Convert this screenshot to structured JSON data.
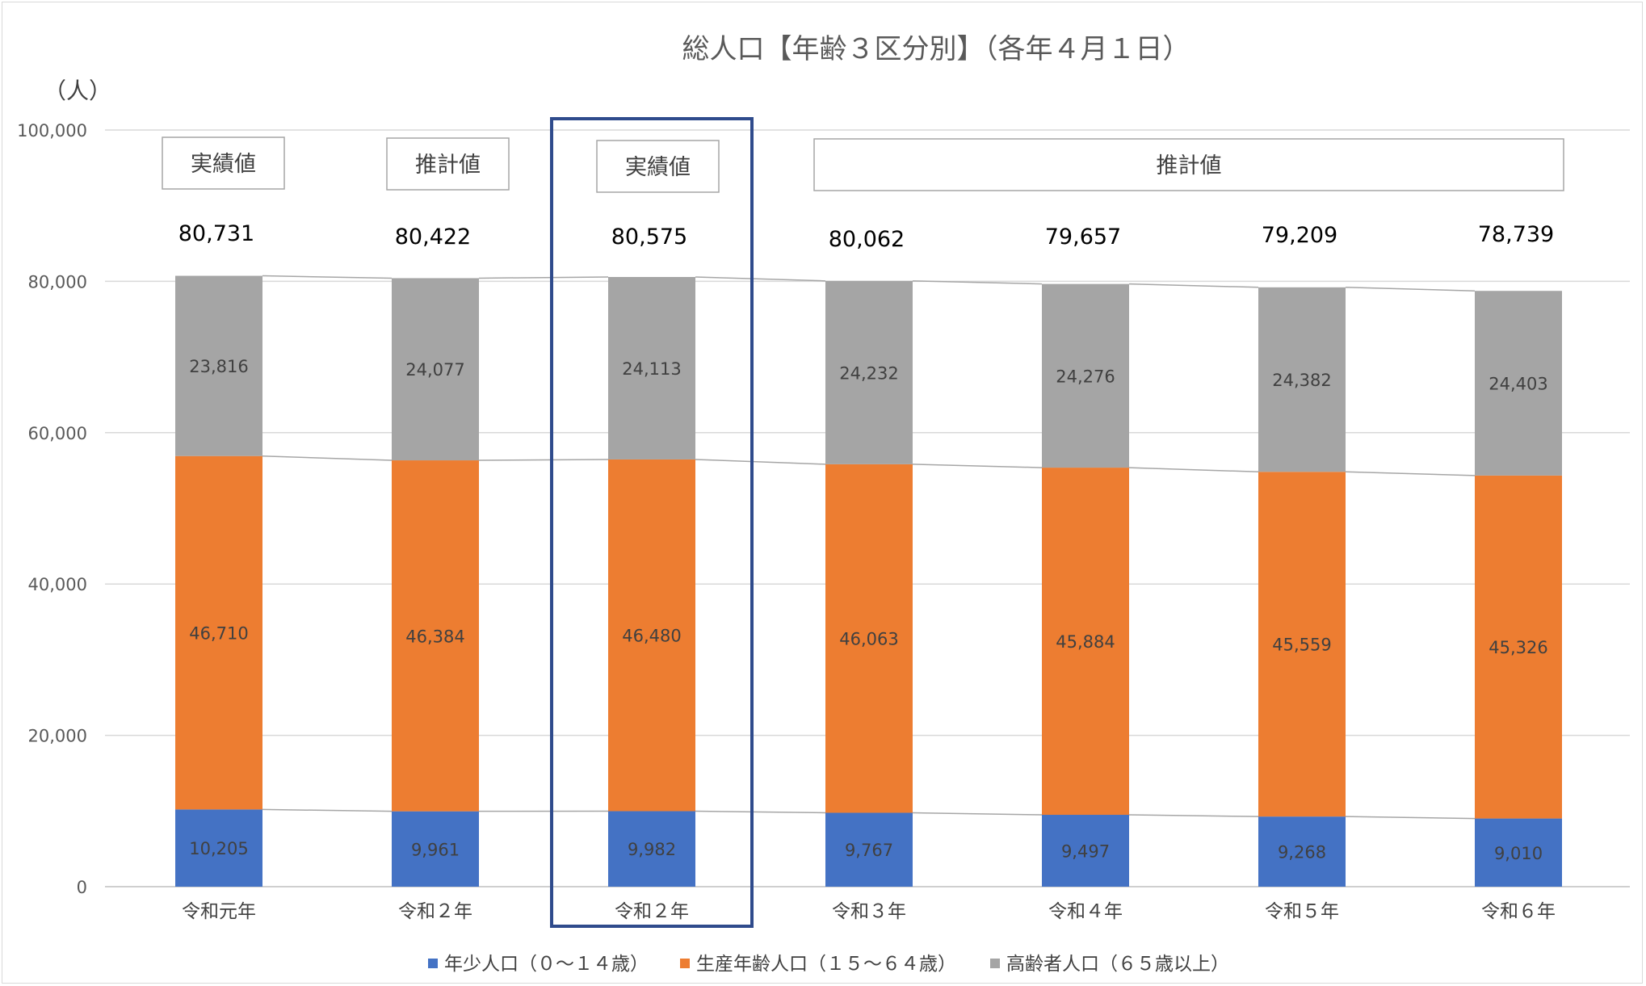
{
  "chart_data": {
    "type": "bar",
    "stacked": true,
    "title": "総人口【年齢３区分別】（各年４月１日）",
    "unit_label": "（人）",
    "categories": [
      "令和元年",
      "令和２年",
      "令和２年",
      "令和３年",
      "令和４年",
      "令和５年",
      "令和６年"
    ],
    "series": [
      {
        "name": "年少人口（０～１４歳）",
        "color": "#4472c4",
        "values": [
          10205,
          9961,
          9982,
          9767,
          9497,
          9268,
          9010
        ],
        "labels": [
          "10,205",
          "9,961",
          "9,982",
          "9,767",
          "9,497",
          "9,268",
          "9,010"
        ]
      },
      {
        "name": "生産年齢人口（１５～６４歳）",
        "color": "#ed7d31",
        "values": [
          46710,
          46384,
          46480,
          46063,
          45884,
          45559,
          45326
        ],
        "labels": [
          "46,710",
          "46,384",
          "46,480",
          "46,063",
          "45,884",
          "45,559",
          "45,326"
        ]
      },
      {
        "name": "高齢者人口（６５歳以上）",
        "color": "#a5a5a5",
        "values": [
          23816,
          24077,
          24113,
          24232,
          24276,
          24382,
          24403
        ],
        "labels": [
          "23,816",
          "24,077",
          "24,113",
          "24,232",
          "24,276",
          "24,382",
          "24,403"
        ]
      }
    ],
    "totals": [
      80731,
      80422,
      80575,
      80062,
      79657,
      79209,
      78739
    ],
    "total_labels": [
      "80,731",
      "80,422",
      "80,575",
      "80,062",
      "79,657",
      "79,209",
      "78,739"
    ],
    "ylim": [
      0,
      100000
    ],
    "yticks": [
      0,
      20000,
      40000,
      60000,
      80000,
      100000
    ],
    "ytick_labels": [
      "0",
      "20,000",
      "40,000",
      "60,000",
      "80,000",
      "100,000"
    ],
    "grid": true,
    "series_lines": true,
    "legend_position": "bottom",
    "annotations": [
      {
        "text": "実績値",
        "category_start": 0,
        "category_end": 0
      },
      {
        "text": "推計値",
        "category_start": 1,
        "category_end": 1
      },
      {
        "text": "実績値",
        "category_start": 2,
        "category_end": 2
      },
      {
        "text": "推計値",
        "category_start": 3,
        "category_end": 6
      }
    ],
    "highlighted_category": 2,
    "highlight_color": "#2f4b8c"
  }
}
